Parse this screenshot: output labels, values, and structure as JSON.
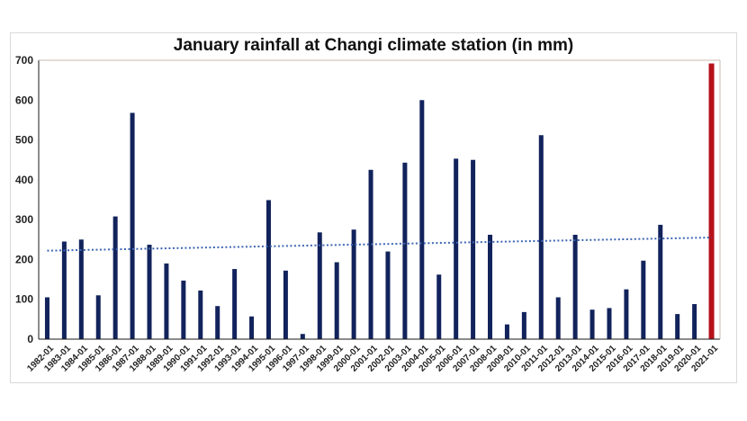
{
  "chart_data": {
    "type": "bar",
    "title": "January rainfall at Changi climate station (in mm)",
    "xlabel": "",
    "ylabel": "",
    "ylim": [
      0,
      700
    ],
    "yticks": [
      "0",
      "100",
      "200",
      "300",
      "400",
      "500",
      "600",
      "700"
    ],
    "categories": [
      "1982-01",
      "1983-01",
      "1984-01",
      "1985-01",
      "1986-01",
      "1987-01",
      "1988-01",
      "1989-01",
      "1990-01",
      "1991-01",
      "1992-01",
      "1993-01",
      "1994-01",
      "1995-01",
      "1996-01",
      "1997-01",
      "1998-01",
      "1999-01",
      "2000-01",
      "2001-01",
      "2002-01",
      "2003-01",
      "2004-01",
      "2005-01",
      "2006-01",
      "2007-01",
      "2008-01",
      "2009-01",
      "2010-01",
      "2011-01",
      "2012-01",
      "2013-01",
      "2014-01",
      "2015-01",
      "2016-01",
      "2017-01",
      "2018-01",
      "2019-01",
      "2020-01",
      "2021-01"
    ],
    "values": [
      105,
      245,
      250,
      110,
      308,
      568,
      237,
      190,
      147,
      122,
      83,
      176,
      57,
      349,
      172,
      13,
      268,
      193,
      275,
      425,
      220,
      443,
      600,
      162,
      453,
      450,
      262,
      37,
      68,
      512,
      105,
      262,
      74,
      78,
      125,
      197,
      287,
      63,
      88,
      692
    ],
    "colors": {
      "bar": "#12235c",
      "highlight": "#b5121b",
      "trend": "#3d66b3",
      "axis": "#1a1a1a"
    },
    "highlight_category": "2021-01",
    "trendline": {
      "style": "dotted",
      "start": 222,
      "end": 255
    },
    "grid": false,
    "legend": "none"
  }
}
